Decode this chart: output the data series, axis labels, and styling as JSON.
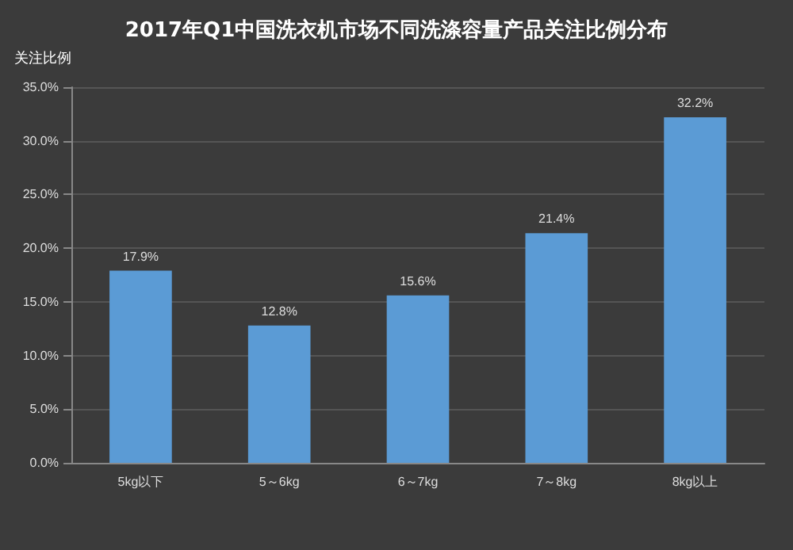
{
  "chart_data": {
    "type": "bar",
    "title": "2017年Q1中国洗衣机市场不同洗涤容量产品关注比例分布",
    "ylabel": "关注比例",
    "categories": [
      "5kg以下",
      "5～6kg",
      "6～7kg",
      "7～8kg",
      "8kg以上"
    ],
    "values": [
      17.9,
      12.8,
      15.6,
      21.4,
      32.2
    ],
    "value_labels": [
      "17.9%",
      "12.8%",
      "15.6%",
      "21.4%",
      "32.2%"
    ],
    "color": "#5b9bd5",
    "ylim": [
      0,
      35
    ],
    "yticks": [
      {
        "value": 0,
        "label": "0.0%"
      },
      {
        "value": 5,
        "label": "5.0%"
      },
      {
        "value": 10,
        "label": "10.0%"
      },
      {
        "value": 15,
        "label": "15.0%"
      },
      {
        "value": 20,
        "label": "20.0%"
      },
      {
        "value": 25,
        "label": "25.0%"
      },
      {
        "value": 30,
        "label": "30.0%"
      },
      {
        "value": 35,
        "label": "35.0%"
      }
    ],
    "grid": "y"
  }
}
